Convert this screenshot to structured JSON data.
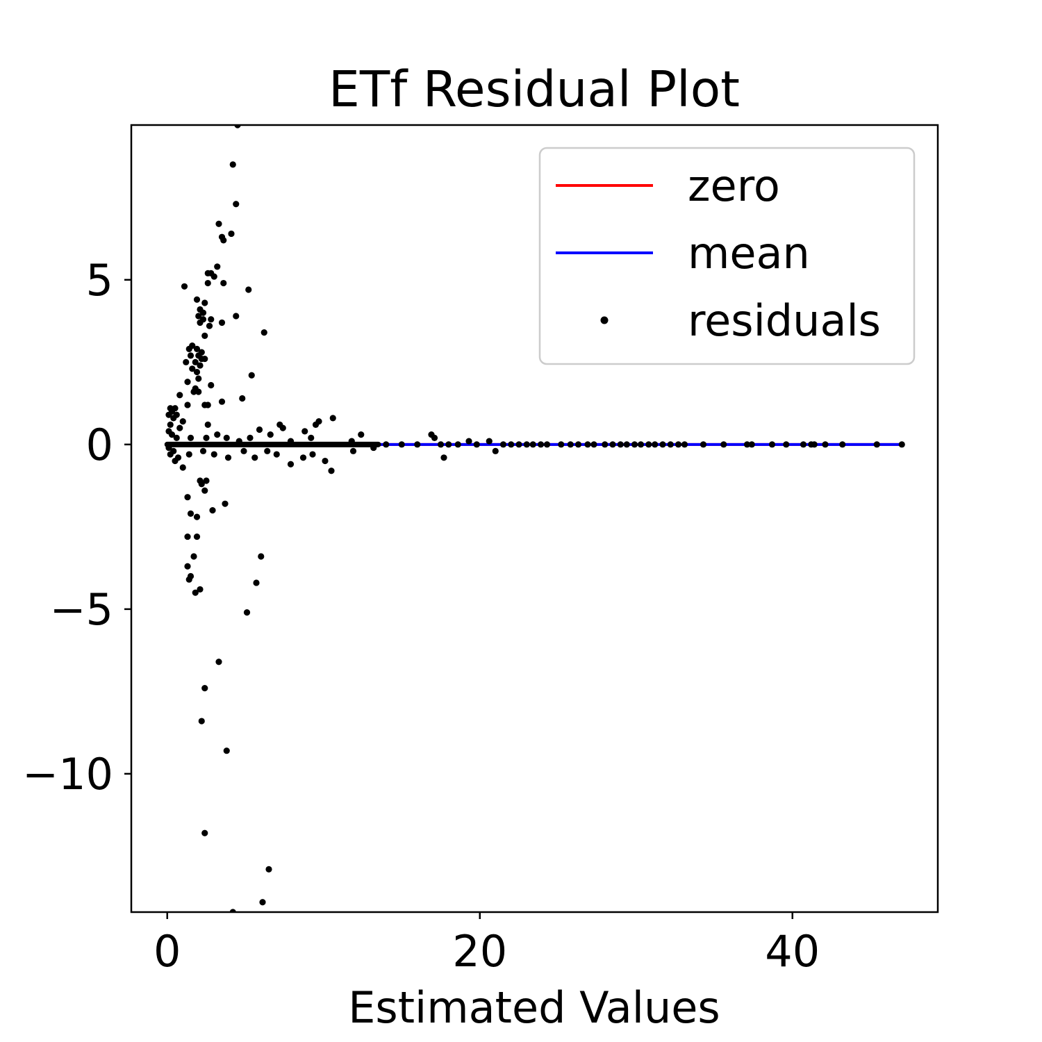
{
  "chart_data": {
    "type": "scatter",
    "title": "ETf Residual Plot",
    "xlabel": "Estimated Values",
    "ylabel": "",
    "xlim": [
      -2.3,
      49.3
    ],
    "ylim": [
      -14.2,
      9.7
    ],
    "xticks": [
      0,
      20,
      40
    ],
    "xtick_labels": [
      "0",
      "20",
      "40"
    ],
    "yticks": [
      5,
      0,
      -5,
      -10
    ],
    "ytick_labels": [
      "5",
      "0",
      "−5",
      "−10"
    ],
    "grid": false,
    "legend": {
      "placement": "top-right",
      "entries": [
        {
          "label": "zero",
          "color": "#ff0000",
          "kind": "line"
        },
        {
          "label": "mean",
          "color": "#0000ff",
          "kind": "line"
        },
        {
          "label": "residuals",
          "color": "#000000",
          "kind": "point"
        }
      ]
    },
    "series": [
      {
        "name": "zero",
        "kind": "line",
        "color": "#ff0000",
        "x": [
          0,
          47
        ],
        "y": [
          0,
          0
        ]
      },
      {
        "name": "mean",
        "kind": "line",
        "color": "#0000ff",
        "x": [
          0,
          47
        ],
        "y": [
          0,
          0
        ]
      },
      {
        "name": "residuals",
        "kind": "scatter",
        "color": "#000000",
        "points": [
          [
            4.5,
            9.7
          ],
          [
            4.2,
            8.5
          ],
          [
            4.4,
            7.3
          ],
          [
            3.3,
            6.7
          ],
          [
            4.1,
            6.4
          ],
          [
            3.5,
            6.3
          ],
          [
            3.6,
            6.2
          ],
          [
            3.2,
            5.4
          ],
          [
            2.6,
            5.2
          ],
          [
            2.8,
            5.2
          ],
          [
            3.0,
            5.1
          ],
          [
            2.6,
            4.9
          ],
          [
            3.6,
            4.9
          ],
          [
            1.1,
            4.8
          ],
          [
            5.2,
            4.7
          ],
          [
            1.9,
            4.4
          ],
          [
            2.4,
            4.3
          ],
          [
            2.1,
            4.1
          ],
          [
            2.3,
            4.0
          ],
          [
            4.4,
            3.9
          ],
          [
            2.0,
            3.9
          ],
          [
            2.3,
            3.8
          ],
          [
            2.8,
            3.8
          ],
          [
            2.1,
            3.7
          ],
          [
            3.5,
            3.7
          ],
          [
            2.7,
            3.6
          ],
          [
            6.2,
            3.4
          ],
          [
            2.4,
            3.3
          ],
          [
            1.6,
            3.0
          ],
          [
            1.4,
            2.9
          ],
          [
            1.9,
            2.9
          ],
          [
            2.2,
            2.8
          ],
          [
            1.5,
            2.7
          ],
          [
            2.0,
            2.7
          ],
          [
            2.4,
            2.6
          ],
          [
            2.2,
            2.6
          ],
          [
            1.8,
            2.5
          ],
          [
            1.2,
            2.5
          ],
          [
            2.1,
            2.4
          ],
          [
            1.6,
            2.3
          ],
          [
            1.9,
            2.2
          ],
          [
            5.4,
            2.1
          ],
          [
            2.0,
            2.0
          ],
          [
            1.3,
            1.9
          ],
          [
            2.8,
            1.8
          ],
          [
            1.8,
            1.7
          ],
          [
            1.7,
            1.6
          ],
          [
            2.0,
            1.6
          ],
          [
            0.8,
            1.5
          ],
          [
            4.8,
            1.4
          ],
          [
            3.5,
            1.3
          ],
          [
            2.4,
            1.2
          ],
          [
            2.6,
            1.2
          ],
          [
            1.3,
            1.2
          ],
          [
            0.2,
            1.1
          ],
          [
            0.5,
            1.1
          ],
          [
            0.3,
            1.0
          ],
          [
            0.1,
            0.9
          ],
          [
            0.6,
            0.9
          ],
          [
            0.4,
            0.8
          ],
          [
            1.0,
            0.7
          ],
          [
            2.6,
            0.6
          ],
          [
            0.2,
            0.6
          ],
          [
            0.8,
            0.5
          ],
          [
            0.1,
            0.4
          ],
          [
            5.9,
            0.45
          ],
          [
            7.2,
            0.6
          ],
          [
            7.4,
            0.5
          ],
          [
            9.7,
            0.7
          ],
          [
            10.6,
            0.8
          ],
          [
            9.5,
            0.6
          ],
          [
            8.8,
            0.4
          ],
          [
            12.4,
            0.3
          ],
          [
            16.9,
            0.3
          ],
          [
            17.1,
            0.2
          ],
          [
            0.3,
            0.3
          ],
          [
            0.6,
            0.2
          ],
          [
            1.5,
            0.2
          ],
          [
            2.5,
            0.2
          ],
          [
            3.2,
            0.3
          ],
          [
            3.8,
            0.2
          ],
          [
            4.6,
            0.1
          ],
          [
            5.3,
            0.2
          ],
          [
            6.6,
            0.3
          ],
          [
            7.9,
            0.1
          ],
          [
            9.2,
            0.2
          ],
          [
            11.8,
            0.1
          ],
          [
            19.3,
            0.1
          ],
          [
            20.6,
            0.1
          ],
          [
            0.1,
            -0.1
          ],
          [
            0.4,
            -0.2
          ],
          [
            0.2,
            -0.3
          ],
          [
            0.5,
            -0.5
          ],
          [
            0.7,
            -0.4
          ],
          [
            1.0,
            -0.7
          ],
          [
            1.4,
            -0.3
          ],
          [
            2.3,
            -0.2
          ],
          [
            3.0,
            -0.3
          ],
          [
            3.9,
            -0.4
          ],
          [
            4.9,
            -0.2
          ],
          [
            5.6,
            -0.4
          ],
          [
            6.4,
            -0.2
          ],
          [
            7.0,
            -0.3
          ],
          [
            7.9,
            -0.6
          ],
          [
            8.7,
            -0.4
          ],
          [
            9.3,
            -0.3
          ],
          [
            10.1,
            -0.5
          ],
          [
            10.5,
            -0.8
          ],
          [
            11.9,
            -0.2
          ],
          [
            13.2,
            -0.1
          ],
          [
            17.7,
            -0.4
          ],
          [
            21.0,
            -0.2
          ],
          [
            2.1,
            -1.1
          ],
          [
            2.2,
            -1.2
          ],
          [
            2.5,
            -1.1
          ],
          [
            2.4,
            -1.4
          ],
          [
            1.3,
            -1.6
          ],
          [
            2.9,
            -2.0
          ],
          [
            1.5,
            -2.1
          ],
          [
            1.9,
            -2.2
          ],
          [
            3.7,
            -1.8
          ],
          [
            1.3,
            -2.8
          ],
          [
            1.9,
            -2.8
          ],
          [
            1.7,
            -3.4
          ],
          [
            6.0,
            -3.4
          ],
          [
            1.3,
            -3.7
          ],
          [
            1.5,
            -4.0
          ],
          [
            1.4,
            -4.1
          ],
          [
            5.7,
            -4.2
          ],
          [
            2.1,
            -4.4
          ],
          [
            1.8,
            -4.5
          ],
          [
            5.1,
            -5.1
          ],
          [
            3.3,
            -6.6
          ],
          [
            2.4,
            -7.4
          ],
          [
            2.2,
            -8.4
          ],
          [
            3.8,
            -9.3
          ],
          [
            2.4,
            -11.8
          ],
          [
            6.5,
            -12.9
          ],
          [
            6.1,
            -13.9
          ],
          [
            4.2,
            -14.2
          ],
          [
            14,
            0
          ],
          [
            15,
            0
          ],
          [
            16,
            0
          ],
          [
            17.5,
            0
          ],
          [
            18,
            0
          ],
          [
            18.6,
            0
          ],
          [
            19.8,
            0
          ],
          [
            21.5,
            0
          ],
          [
            22,
            0
          ],
          [
            22.5,
            0
          ],
          [
            23,
            0
          ],
          [
            23.4,
            0
          ],
          [
            23.9,
            0
          ],
          [
            24.3,
            0
          ],
          [
            25.2,
            0
          ],
          [
            25.8,
            0
          ],
          [
            26.3,
            0
          ],
          [
            26.9,
            0
          ],
          [
            27.3,
            0
          ],
          [
            28,
            0
          ],
          [
            28.5,
            0
          ],
          [
            29,
            0
          ],
          [
            29.4,
            0
          ],
          [
            29.9,
            0
          ],
          [
            30.3,
            0
          ],
          [
            30.8,
            0
          ],
          [
            31.2,
            0
          ],
          [
            31.7,
            0
          ],
          [
            32.2,
            0
          ],
          [
            32.7,
            0
          ],
          [
            33.1,
            0
          ],
          [
            34.3,
            0
          ],
          [
            35.6,
            0
          ],
          [
            37.1,
            0
          ],
          [
            37.4,
            0
          ],
          [
            38.7,
            0
          ],
          [
            39.6,
            0
          ],
          [
            40.7,
            0
          ],
          [
            41.2,
            0
          ],
          [
            41.4,
            0
          ],
          [
            42.1,
            0
          ],
          [
            43.2,
            0
          ],
          [
            45.4,
            0
          ],
          [
            47.0,
            0
          ]
        ]
      }
    ]
  }
}
